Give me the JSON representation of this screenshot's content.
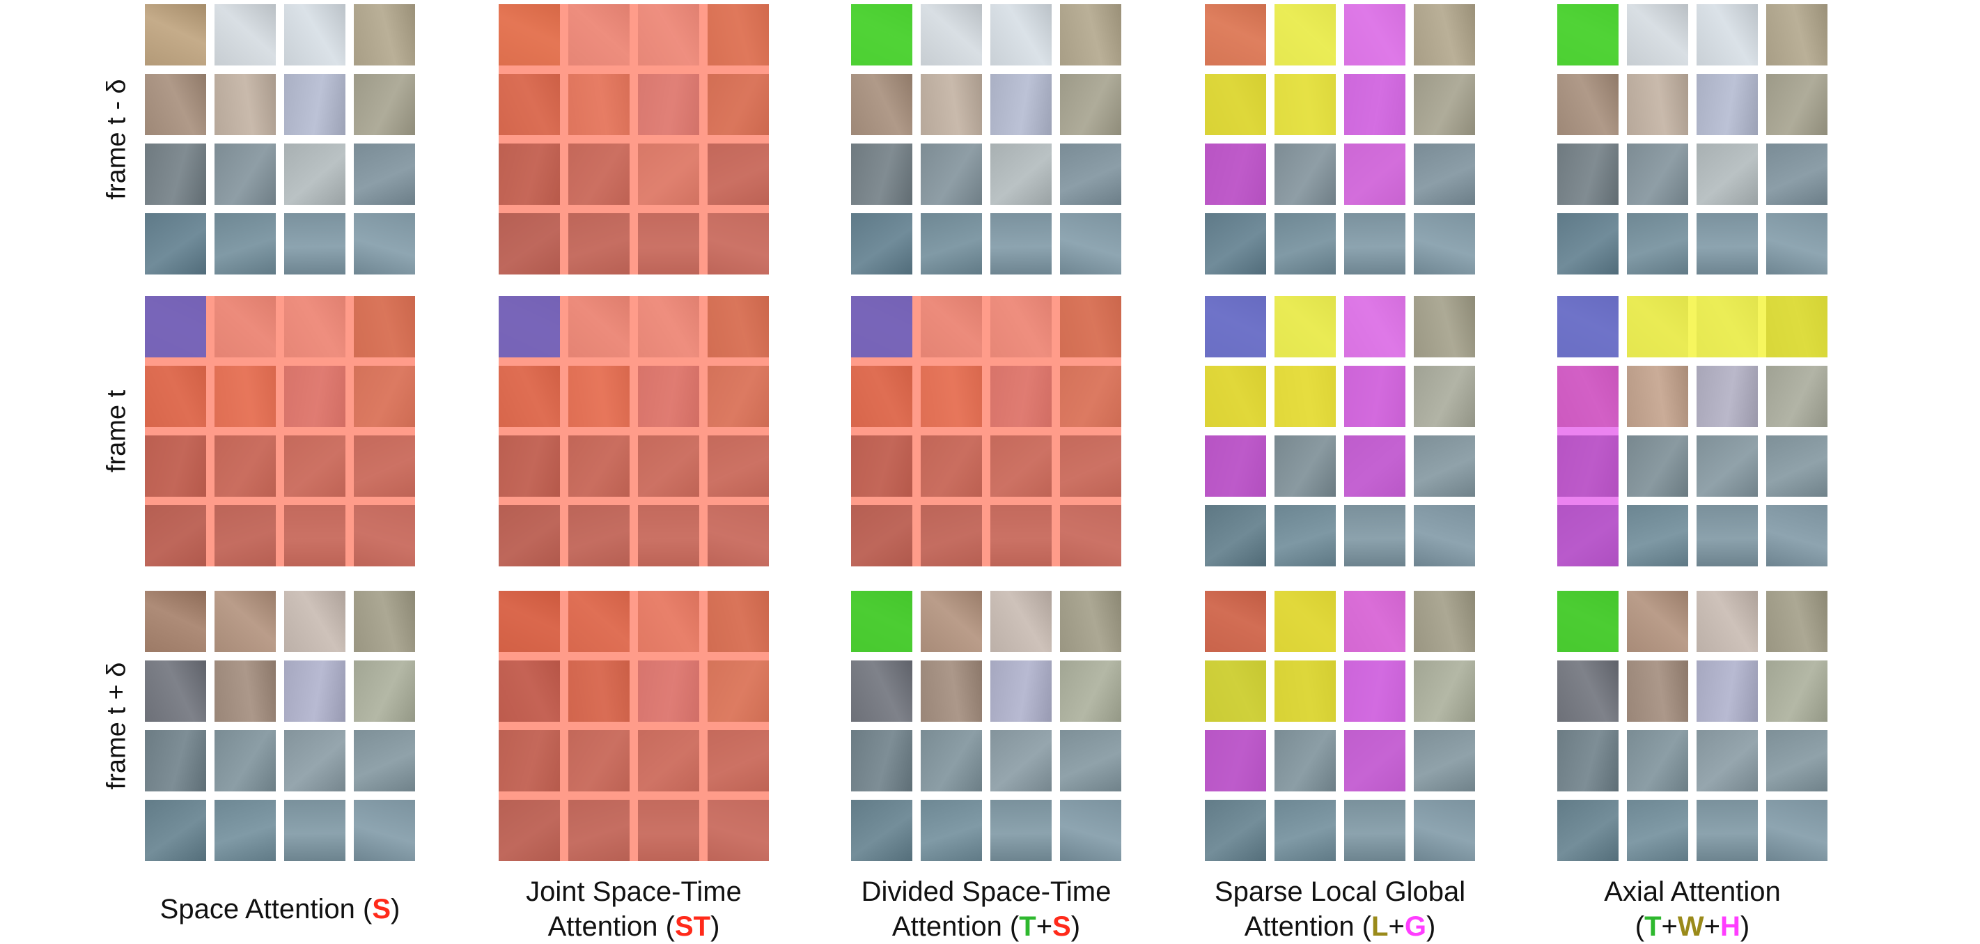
{
  "rows": [
    {
      "label": "frame t - δ"
    },
    {
      "label": "frame t"
    },
    {
      "label": "frame t + δ"
    }
  ],
  "columns": [
    {
      "caption_lines": [
        [
          {
            "text": "Space Attention ("
          },
          {
            "text": "S",
            "color": "#ff2a1a"
          },
          {
            "text": ")"
          }
        ]
      ]
    },
    {
      "caption_lines": [
        [
          {
            "text": "Joint Space-Time"
          }
        ],
        [
          {
            "text": "Attention ("
          },
          {
            "text": "ST",
            "color": "#ff2a1a"
          },
          {
            "text": ")"
          }
        ]
      ]
    },
    {
      "caption_lines": [
        [
          {
            "text": "Divided Space-Time"
          }
        ],
        [
          {
            "text": "Attention ("
          },
          {
            "text": "T",
            "color": "#2eb82e"
          },
          {
            "text": "+"
          },
          {
            "text": "S",
            "color": "#ff2a1a"
          },
          {
            "text": ")"
          }
        ]
      ]
    },
    {
      "caption_lines": [
        [
          {
            "text": "Sparse Local Global"
          }
        ],
        [
          {
            "text": "Attention ("
          },
          {
            "text": "L",
            "color": "#9a8a1a"
          },
          {
            "text": "+"
          },
          {
            "text": "G",
            "color": "#ff3dff"
          },
          {
            "text": ")"
          }
        ]
      ]
    },
    {
      "caption_lines": [
        [
          {
            "text": "Axial Attention"
          }
        ],
        [
          {
            "text": "("
          },
          {
            "text": "T",
            "color": "#2eb82e"
          },
          {
            "text": "+"
          },
          {
            "text": "W",
            "color": "#9a8a1a"
          },
          {
            "text": "+"
          },
          {
            "text": "H",
            "color": "#ff3dff"
          },
          {
            "text": ")"
          }
        ]
      ]
    }
  ],
  "colors": {
    "space_red": "#ff4a2a",
    "query_blue": "#5560d8",
    "temporal_green": "#33dd22",
    "local_yellow": "#f2f21a",
    "global_magenta": "#e040e8"
  }
}
